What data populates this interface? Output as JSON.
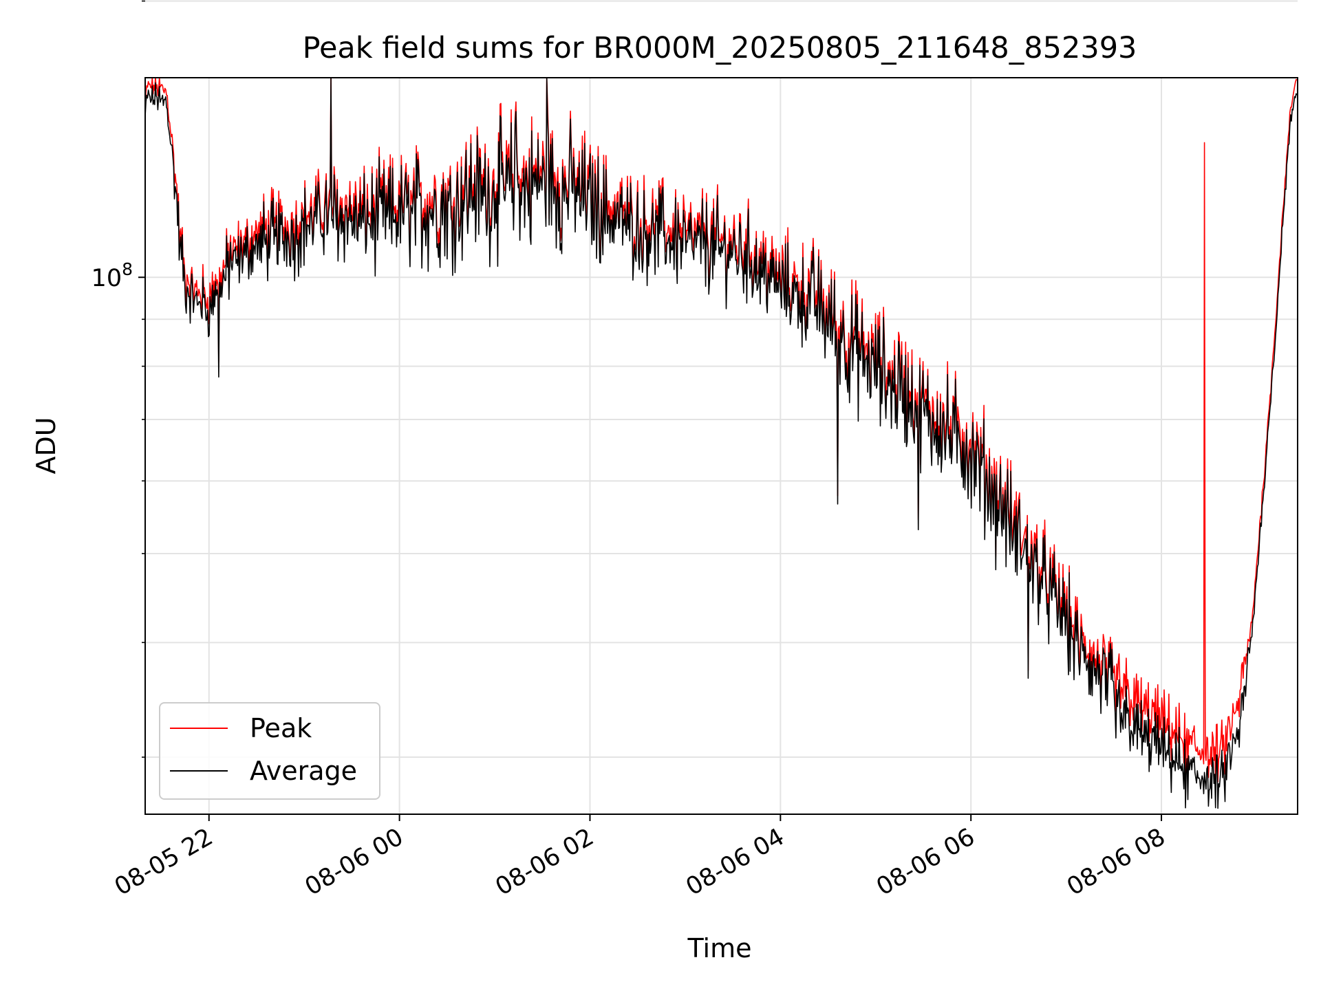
{
  "chart_data": {
    "type": "line",
    "title": "Peak field sums for BR000M_20250805_211648_852393",
    "xlabel": "Time",
    "ylabel": "ADU",
    "y_scale": "log",
    "grid": true,
    "legend_position": "lower-left",
    "x_tick_labels": [
      "08-05 22",
      "08-06 00",
      "08-06 02",
      "08-06 04",
      "08-06 06",
      "08-06 08"
    ],
    "x_tick_times_hours": [
      22,
      24,
      26,
      28,
      30,
      32
    ],
    "x_range_hours": [
      21.33,
      33.43
    ],
    "y_major_tick_value": 100000000,
    "y_major_tick_label": {
      "base": "10",
      "exp": "8"
    },
    "y_minor_tick_values": [
      30000000,
      40000000,
      50000000,
      60000000,
      70000000,
      80000000,
      90000000,
      200000000
    ],
    "ylim": [
      26000000,
      165000000
    ],
    "x_step_hours": 0.0083,
    "series": [
      {
        "name": "Peak",
        "color": "#ff0000",
        "anchors": [
          [
            21.33,
            155000000
          ],
          [
            21.35,
            162000000
          ],
          [
            21.55,
            160000000
          ],
          [
            21.6,
            145000000
          ],
          [
            21.66,
            125000000
          ],
          [
            21.7,
            110000000
          ],
          [
            21.75,
            100000000
          ],
          [
            21.85,
            97000000
          ],
          [
            22.0,
            95000000
          ],
          [
            22.2,
            105000000
          ],
          [
            22.5,
            112000000
          ],
          [
            22.9,
            115000000
          ],
          [
            23.3,
            120000000
          ],
          [
            23.7,
            118000000
          ],
          [
            24.0,
            120000000
          ],
          [
            24.5,
            123000000
          ],
          [
            25.0,
            128000000
          ],
          [
            25.5,
            130000000
          ],
          [
            25.8,
            127000000
          ],
          [
            26.2,
            120000000
          ],
          [
            26.6,
            115000000
          ],
          [
            27.0,
            112000000
          ],
          [
            27.4,
            110000000
          ],
          [
            27.8,
            105000000
          ],
          [
            28.0,
            100000000
          ],
          [
            28.3,
            97000000
          ],
          [
            28.6,
            90000000
          ],
          [
            28.9,
            83000000
          ],
          [
            29.3,
            77000000
          ],
          [
            29.7,
            70000000
          ],
          [
            30.0,
            66000000
          ],
          [
            30.3,
            58000000
          ],
          [
            30.6,
            51000000
          ],
          [
            30.9,
            45000000
          ],
          [
            31.1,
            41000000
          ],
          [
            31.4,
            37000000
          ],
          [
            31.8,
            34000000
          ],
          [
            32.2,
            31500000
          ],
          [
            32.5,
            30000000
          ],
          [
            32.65,
            30500000
          ],
          [
            32.8,
            34000000
          ],
          [
            32.95,
            42000000
          ],
          [
            33.1,
            65000000
          ],
          [
            33.2,
            90000000
          ],
          [
            33.28,
            120000000
          ],
          [
            33.35,
            150000000
          ],
          [
            33.4,
            162000000
          ],
          [
            33.43,
            166000000
          ]
        ],
        "volatility": [
          [
            21.33,
            0.01
          ],
          [
            21.6,
            0.02
          ],
          [
            21.7,
            0.03
          ],
          [
            22.2,
            0.035
          ],
          [
            23.8,
            0.055
          ],
          [
            25.0,
            0.07
          ],
          [
            25.7,
            0.07
          ],
          [
            26.4,
            0.05
          ],
          [
            28.0,
            0.05
          ],
          [
            28.6,
            0.06
          ],
          [
            30.3,
            0.06
          ],
          [
            31.1,
            0.05
          ],
          [
            32.0,
            0.035
          ],
          [
            32.8,
            0.03
          ],
          [
            33.0,
            0.01
          ],
          [
            33.43,
            0.005
          ]
        ],
        "spikes": [
          [
            23.28,
            0.25
          ],
          [
            25.22,
            0.12
          ],
          [
            25.55,
            0.12
          ],
          [
            32.45,
            0.7
          ]
        ],
        "dips": [
          [
            22.1,
            -0.1
          ],
          [
            28.6,
            -0.2
          ],
          [
            29.45,
            -0.18
          ],
          [
            30.6,
            -0.12
          ],
          [
            32.25,
            -0.06
          ]
        ]
      },
      {
        "name": "Average",
        "color": "#000000",
        "relative_to": "Peak",
        "offset_log10": -0.012,
        "offset_low_log10": -0.03,
        "low_region_hours": [
          31.5,
          32.9
        ]
      }
    ]
  }
}
